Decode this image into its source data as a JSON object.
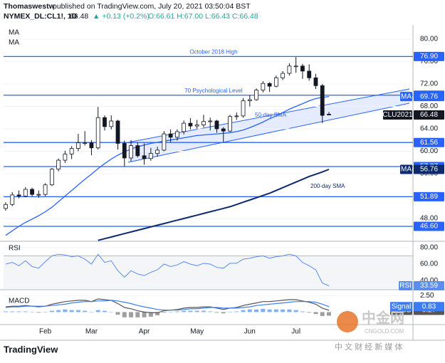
{
  "header": {
    "author": "Thomaswestw",
    "published": "published on TradingView.com, July 20, 2021 03:50:04 BST",
    "symbol": "NYMEX_DL:CL1!, 1D",
    "last": "66.48",
    "change": "▲ +0.13 (+0.2%)",
    "ohlc": "O:66.61 H:67.00 L:66.43 C:66.48"
  },
  "footer": {
    "logo": "TradingView"
  },
  "watermark": {
    "brand": "中金网",
    "site": "CNGOLD.COM",
    "tagline": "中 文 财 经 新 媒 体"
  },
  "chart_data": [
    {
      "type": "candlestick",
      "up_color": "#ffffff",
      "down_color": "#131722",
      "categories": [
        null,
        null,
        null,
        null,
        null,
        null,
        "Feb",
        null,
        null,
        null,
        null,
        null,
        null,
        "Mar",
        null,
        null,
        null,
        null,
        null,
        null,
        null,
        "Apr",
        null,
        null,
        null,
        null,
        null,
        null,
        null,
        "May",
        null,
        null,
        null,
        null,
        null,
        null,
        null,
        "Jun",
        null,
        null,
        null,
        null,
        null,
        null,
        "Jul",
        null,
        null,
        null,
        null,
        null
      ],
      "candles": [
        [
          49.8,
          50.9,
          49.4,
          50.5
        ],
        [
          50.5,
          52.7,
          50.2,
          52.2
        ],
        [
          52.2,
          53.0,
          51.6,
          52.0
        ],
        [
          52.0,
          53.6,
          51.8,
          53.2
        ],
        [
          53.2,
          53.5,
          51.9,
          52.3
        ],
        [
          52.3,
          53.0,
          51.7,
          52.3
        ],
        [
          52.3,
          54.3,
          52.0,
          54.0
        ],
        [
          54.0,
          57.0,
          53.8,
          56.8
        ],
        [
          56.8,
          58.7,
          56.4,
          58.4
        ],
        [
          58.4,
          60.1,
          57.9,
          59.5
        ],
        [
          59.5,
          60.9,
          58.6,
          60.5
        ],
        [
          60.5,
          63.1,
          60.0,
          61.5
        ],
        [
          61.5,
          63.6,
          61.0,
          61.5
        ],
        [
          61.5,
          62.0,
          59.3,
          60.6
        ],
        [
          60.6,
          67.9,
          60.3,
          66.0
        ],
        [
          66.0,
          66.4,
          63.7,
          64.4
        ],
        [
          64.4,
          66.4,
          63.9,
          65.4
        ],
        [
          65.4,
          65.6,
          60.3,
          61.4
        ],
        [
          61.4,
          61.9,
          57.3,
          58.8
        ],
        [
          58.8,
          62.0,
          58.2,
          61.0
        ],
        [
          61.0,
          61.6,
          58.9,
          59.2
        ],
        [
          59.2,
          61.4,
          57.6,
          58.7
        ],
        [
          58.7,
          60.6,
          58.3,
          59.6
        ],
        [
          59.6,
          60.8,
          59.0,
          60.2
        ],
        [
          60.2,
          63.6,
          60.0,
          63.1
        ],
        [
          63.1,
          63.9,
          61.6,
          62.5
        ],
        [
          62.5,
          63.9,
          61.9,
          63.5
        ],
        [
          63.5,
          65.5,
          63.0,
          65.0
        ],
        [
          65.0,
          65.9,
          63.9,
          64.5
        ],
        [
          64.5,
          65.6,
          64.0,
          64.7
        ],
        [
          64.7,
          66.5,
          64.3,
          65.3
        ],
        [
          65.3,
          66.0,
          63.7,
          65.4
        ],
        [
          65.4,
          65.6,
          63.3,
          64.0
        ],
        [
          64.0,
          64.3,
          61.6,
          63.6
        ],
        [
          63.6,
          66.5,
          63.4,
          66.2
        ],
        [
          66.2,
          66.9,
          65.6,
          66.3
        ],
        [
          66.3,
          69.5,
          66.0,
          69.0
        ],
        [
          69.0,
          70.0,
          68.0,
          69.2
        ],
        [
          69.2,
          71.2,
          69.0,
          70.9
        ],
        [
          70.9,
          72.5,
          70.5,
          72.1
        ],
        [
          72.1,
          72.3,
          70.6,
          71.6
        ],
        [
          71.6,
          73.5,
          71.4,
          73.1
        ],
        [
          73.1,
          74.3,
          72.7,
          73.9
        ],
        [
          73.9,
          75.7,
          73.5,
          75.2
        ],
        [
          75.2,
          76.8,
          74.0,
          75.2
        ],
        [
          75.2,
          75.6,
          72.9,
          74.3
        ],
        [
          74.3,
          75.5,
          72.6,
          73.1
        ],
        [
          73.1,
          73.8,
          71.1,
          71.7
        ],
        [
          71.7,
          72.0,
          65.0,
          66.4
        ],
        [
          66.61,
          67.0,
          66.43,
          66.48
        ]
      ],
      "last_label": "CLU2021",
      "series": [
        {
          "name": "MA",
          "annotation": "50-day SMA",
          "color": "#2962ff",
          "values": [
            45.0,
            45.8,
            46.6,
            47.3,
            47.9,
            48.5,
            49.2,
            50.0,
            51.0,
            52.0,
            53.0,
            54.0,
            55.0,
            55.9,
            56.9,
            57.8,
            58.6,
            59.3,
            59.9,
            60.4,
            60.8,
            61.1,
            61.4,
            61.6,
            61.8,
            62.0,
            62.2,
            62.4,
            62.6,
            62.8,
            62.9,
            63.0,
            63.1,
            63.2,
            63.3,
            63.5,
            63.8,
            64.2,
            64.7,
            65.2,
            65.8,
            66.3,
            66.9,
            67.5,
            68.0,
            68.5,
            69.0,
            69.4,
            69.6,
            69.76
          ]
        },
        {
          "name": "MA",
          "annotation": "200-day SMA",
          "color": "#0d2a6e",
          "values": [
            null,
            null,
            null,
            null,
            null,
            null,
            null,
            null,
            null,
            null,
            null,
            null,
            null,
            null,
            44.1,
            44.4,
            44.7,
            45.0,
            45.3,
            45.6,
            45.9,
            46.2,
            46.5,
            46.8,
            47.1,
            47.4,
            47.7,
            48.0,
            48.3,
            48.6,
            48.9,
            49.2,
            49.5,
            49.8,
            50.1,
            50.5,
            50.9,
            51.3,
            51.7,
            52.1,
            52.5,
            53.0,
            53.5,
            54.0,
            54.5,
            55.0,
            55.5,
            55.9,
            56.3,
            56.76
          ]
        }
      ],
      "levels": [
        {
          "value": 76.9,
          "label": "76.90",
          "text": "October 2018 High"
        },
        {
          "value": 70,
          "label": "70.00",
          "text": "70 Psychological Level"
        },
        {
          "value": 61.56,
          "label": "61.56"
        },
        {
          "value": 57.27,
          "label": "57.27"
        },
        {
          "value": 51.89,
          "label": "51.89"
        },
        {
          "value": 46.6,
          "label": "46.60"
        }
      ],
      "level_color": "#2962ff",
      "ylim": [
        44.06,
        82.54
      ],
      "yticks": [
        {
          "value": 48,
          "label": "48.00"
        },
        {
          "value": 52,
          "label": "52.00"
        },
        {
          "value": 56,
          "label": "56.00"
        },
        {
          "value": 60,
          "label": "60.00"
        },
        {
          "value": 64,
          "label": "64.00"
        },
        {
          "value": 68,
          "label": "68.00"
        },
        {
          "value": 72,
          "label": "72.00"
        },
        {
          "value": 76,
          "label": "76.00"
        },
        {
          "value": 80,
          "label": "80.00"
        }
      ]
    },
    {
      "type": "line",
      "title": "RSI",
      "band": [
        30,
        70
      ],
      "series": [
        {
          "name": "RSI",
          "color": "#5b8def",
          "values": [
            60,
            62,
            58,
            64,
            57,
            55,
            63,
            70,
            72,
            71,
            69,
            70,
            66,
            60,
            72,
            62,
            64,
            52,
            44,
            52,
            48,
            46,
            50,
            53,
            60,
            57,
            59,
            63,
            60,
            58,
            61,
            60,
            56,
            55,
            61,
            61,
            66,
            67,
            69,
            70,
            67,
            69,
            70,
            72,
            70,
            62,
            58,
            53,
            37,
            33.59
          ]
        }
      ],
      "ylim": [
        30.6,
        86
      ],
      "yticks": [
        {
          "value": 40,
          "label": "40.00"
        },
        {
          "value": 60,
          "label": "60.00"
        },
        {
          "value": 80,
          "label": "80.00"
        }
      ]
    },
    {
      "type": "macd",
      "title": "MACD",
      "series": [
        {
          "name": "MACD",
          "color": "#555555",
          "values": [
            0.8,
            0.9,
            0.9,
            1.0,
            0.9,
            0.8,
            0.9,
            1.2,
            1.4,
            1.6,
            1.7,
            1.8,
            1.8,
            1.6,
            2.0,
            1.9,
            1.8,
            1.3,
            0.7,
            0.5,
            0.2,
            0.0,
            -0.1,
            -0.1,
            0.2,
            0.3,
            0.4,
            0.6,
            0.7,
            0.7,
            0.8,
            0.8,
            0.6,
            0.4,
            0.6,
            0.7,
            1.0,
            1.2,
            1.4,
            1.6,
            1.6,
            1.7,
            1.8,
            1.9,
            1.9,
            1.7,
            1.5,
            1.2,
            0.6,
            0.27
          ]
        },
        {
          "name": "Signal",
          "color": "#3d7cf0",
          "values": [
            0.7,
            0.8,
            0.8,
            0.9,
            0.9,
            0.9,
            0.9,
            1.0,
            1.1,
            1.2,
            1.4,
            1.5,
            1.6,
            1.6,
            1.7,
            1.7,
            1.8,
            1.7,
            1.5,
            1.3,
            1.0,
            0.8,
            0.6,
            0.4,
            0.3,
            0.3,
            0.3,
            0.4,
            0.5,
            0.5,
            0.6,
            0.7,
            0.7,
            0.6,
            0.6,
            0.6,
            0.7,
            0.8,
            1.0,
            1.1,
            1.2,
            1.3,
            1.4,
            1.5,
            1.6,
            1.6,
            1.6,
            1.5,
            1.2,
            0.83
          ]
        }
      ],
      "histogram": [
        0.1,
        0.1,
        0.1,
        0.1,
        0.0,
        -0.1,
        0.0,
        0.2,
        0.3,
        0.4,
        0.3,
        0.3,
        0.2,
        0.0,
        0.3,
        0.2,
        0.0,
        -0.4,
        -0.8,
        -0.8,
        -0.8,
        -0.8,
        -0.7,
        -0.5,
        -0.1,
        0.0,
        0.1,
        0.2,
        0.2,
        0.2,
        0.2,
        0.1,
        -0.1,
        -0.2,
        0.0,
        0.1,
        0.3,
        0.4,
        0.4,
        0.5,
        0.4,
        0.4,
        0.4,
        0.4,
        0.3,
        0.1,
        -0.1,
        -0.3,
        -0.6,
        -0.56
      ],
      "histogram_colors": [
        "#7fb0f7",
        "#9e9e9e"
      ],
      "ylim": [
        -1.8,
        3.2
      ],
      "yticks": [
        {
          "value": 2.5,
          "label": "2.50"
        }
      ]
    }
  ]
}
